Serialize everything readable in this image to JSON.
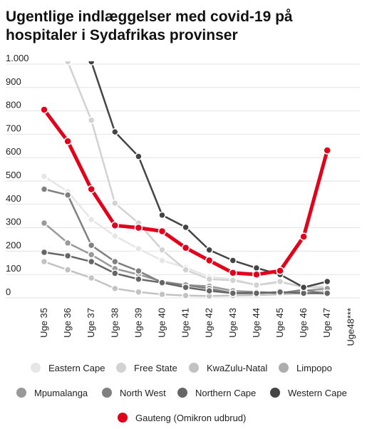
{
  "chart_data": {
    "type": "line",
    "title": [
      "Ugentlige indlæggelser med covid-19 på",
      "hospitaler i Sydafrikas provinser"
    ],
    "categories": [
      "Uge 35",
      "Uge 36",
      "Uge 37",
      "Uge 38",
      "Uge 39",
      "Uge 40",
      "Uge 41",
      "Uge 42",
      "Uge 43",
      "Uge 44",
      "Uge 45",
      "Uge 46",
      "Uge 47",
      "Uge48***"
    ],
    "ylim": [
      0,
      1000
    ],
    "yticks": [
      0,
      100,
      200,
      300,
      400,
      500,
      600,
      700,
      800,
      900,
      {
        "value": 1000,
        "label": "1.000"
      }
    ],
    "grid": true,
    "series": [
      {
        "name": "Eastern Cape",
        "color": "#e6e6e6",
        "values": [
          520,
          455,
          335,
          265,
          210,
          160,
          130,
          90,
          80,
          55,
          65,
          50,
          50,
          null
        ]
      },
      {
        "name": "Free State",
        "color": "#d2d2d2",
        "values": [
          null,
          1010,
          760,
          405,
          320,
          205,
          120,
          80,
          75,
          55,
          70,
          45,
          45,
          null
        ]
      },
      {
        "name": "KwaZulu-Natal",
        "color": "#c2c2c2",
        "values": [
          155,
          120,
          85,
          40,
          25,
          15,
          10,
          8,
          10,
          12,
          15,
          20,
          30,
          null
        ]
      },
      {
        "name": "Limpopo",
        "color": "#adadad",
        "values": [
          null,
          null,
          null,
          null,
          null,
          null,
          null,
          null,
          null,
          null,
          null,
          null,
          null,
          null
        ]
      },
      {
        "name": "Mpumalanga",
        "color": "#999999",
        "values": [
          320,
          235,
          185,
          125,
          100,
          70,
          55,
          50,
          30,
          25,
          20,
          30,
          40,
          null
        ]
      },
      {
        "name": "North West",
        "color": "#808080",
        "values": [
          465,
          440,
          225,
          155,
          115,
          65,
          55,
          40,
          20,
          25,
          20,
          35,
          15,
          null
        ]
      },
      {
        "name": "Northern Cape",
        "color": "#666666",
        "values": [
          195,
          180,
          155,
          105,
          80,
          65,
          45,
          30,
          20,
          20,
          25,
          20,
          20,
          null
        ]
      },
      {
        "name": "Western Cape",
        "color": "#444444",
        "values": [
          null,
          null,
          1010,
          710,
          605,
          354,
          302,
          205,
          160,
          128,
          100,
          45,
          70,
          null
        ]
      },
      {
        "name": "Gauteng (Omikron udbrud)",
        "color": "#e3001b",
        "values": [
          805,
          670,
          465,
          310,
          300,
          285,
          214,
          160,
          107,
          100,
          116,
          262,
          631,
          null
        ]
      }
    ]
  }
}
